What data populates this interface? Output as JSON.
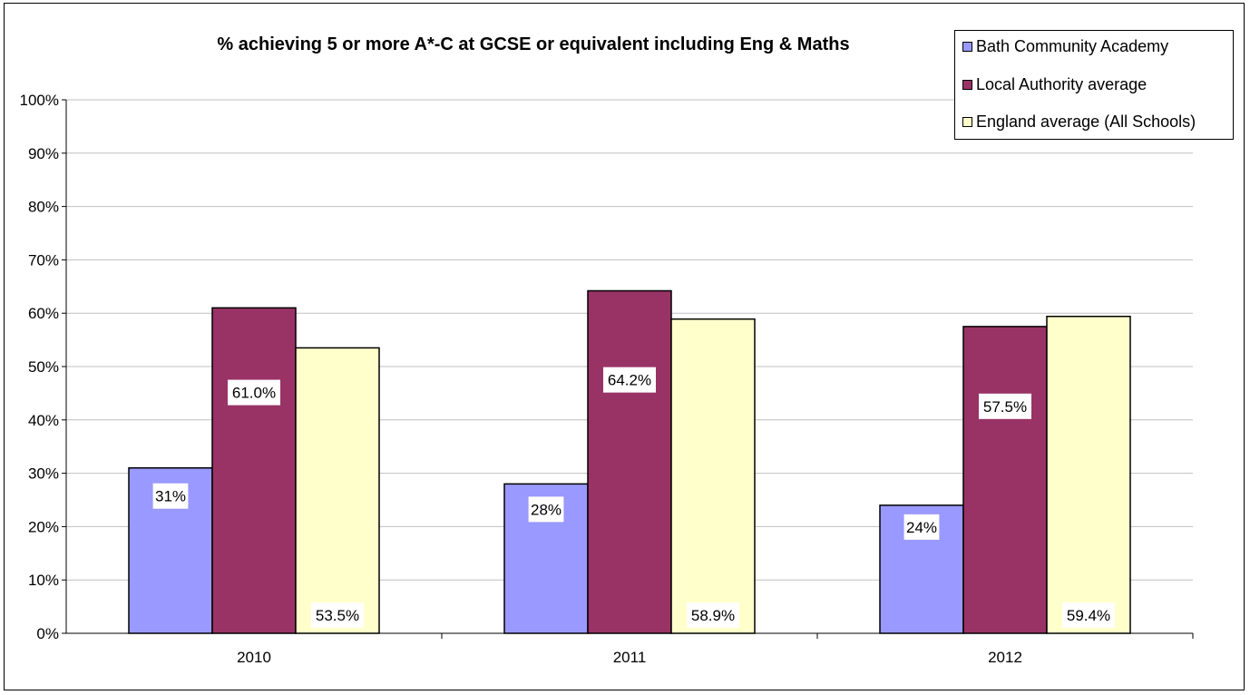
{
  "chart_data": {
    "type": "bar",
    "title": "% achieving 5 or more A*-C at GCSE or equivalent including Eng & Maths",
    "categories": [
      "2010",
      "2011",
      "2012"
    ],
    "series": [
      {
        "name": "Bath Community Academy",
        "values": [
          31,
          28,
          24
        ],
        "labels": [
          "31%",
          "28%",
          "24%"
        ],
        "color": "#9999ff"
      },
      {
        "name": "Local Authority average",
        "values": [
          61.0,
          64.2,
          57.5
        ],
        "labels": [
          "61.0%",
          "64.2%",
          "57.5%"
        ],
        "color": "#993366"
      },
      {
        "name": "England average (All Schools)",
        "values": [
          53.5,
          58.9,
          59.4
        ],
        "labels": [
          "53.5%",
          "58.9%",
          "59.4%"
        ],
        "color": "#ffffcc"
      }
    ],
    "ylim": [
      0,
      100
    ],
    "yticks": [
      "0%",
      "10%",
      "20%",
      "30%",
      "40%",
      "50%",
      "60%",
      "70%",
      "80%",
      "90%",
      "100%"
    ],
    "grid": true,
    "legend_position": "top-right"
  }
}
